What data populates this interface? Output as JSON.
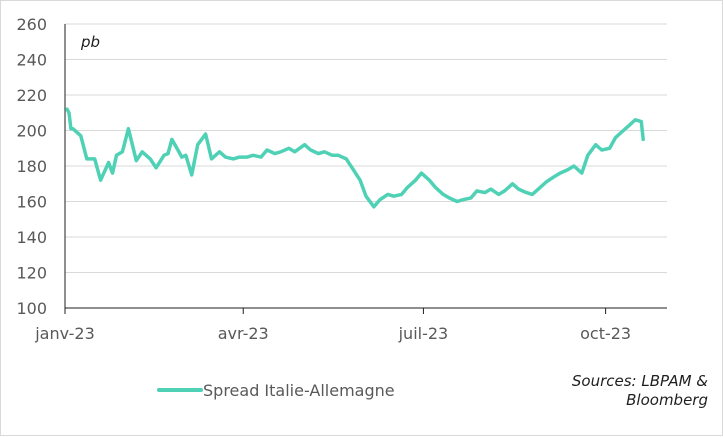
{
  "chart_data": {
    "type": "line",
    "unit_label": "pb",
    "x_ticks": [
      "janv-23",
      "avr-23",
      "juil-23",
      "oct-23"
    ],
    "x_range": [
      "2023-01-01",
      "2023-11-01"
    ],
    "ylim": [
      100,
      260
    ],
    "y_ticks": [
      100,
      120,
      140,
      160,
      180,
      200,
      220,
      240,
      260
    ],
    "grid": true,
    "legend_position": "bottom-left",
    "series": [
      {
        "name": "Spread Italie-Allemagne",
        "color": "#4fd1b5",
        "x": [
          "2023-01-02",
          "2023-01-03",
          "2023-01-04",
          "2023-01-05",
          "2023-01-09",
          "2023-01-12",
          "2023-01-16",
          "2023-01-19",
          "2023-01-23",
          "2023-01-25",
          "2023-01-27",
          "2023-01-30",
          "2023-02-02",
          "2023-02-06",
          "2023-02-09",
          "2023-02-13",
          "2023-02-16",
          "2023-02-20",
          "2023-02-22",
          "2023-02-24",
          "2023-02-27",
          "2023-03-01",
          "2023-03-03",
          "2023-03-06",
          "2023-03-09",
          "2023-03-13",
          "2023-03-16",
          "2023-03-20",
          "2023-03-23",
          "2023-03-27",
          "2023-03-30",
          "2023-04-03",
          "2023-04-06",
          "2023-04-10",
          "2023-04-13",
          "2023-04-17",
          "2023-04-20",
          "2023-04-24",
          "2023-04-27",
          "2023-05-02",
          "2023-05-05",
          "2023-05-09",
          "2023-05-12",
          "2023-05-16",
          "2023-05-19",
          "2023-05-23",
          "2023-05-26",
          "2023-05-30",
          "2023-06-02",
          "2023-06-06",
          "2023-06-09",
          "2023-06-13",
          "2023-06-16",
          "2023-06-20",
          "2023-06-23",
          "2023-06-27",
          "2023-06-30",
          "2023-07-04",
          "2023-07-07",
          "2023-07-11",
          "2023-07-14",
          "2023-07-18",
          "2023-07-21",
          "2023-07-25",
          "2023-07-28",
          "2023-08-01",
          "2023-08-04",
          "2023-08-08",
          "2023-08-11",
          "2023-08-15",
          "2023-08-18",
          "2023-08-22",
          "2023-08-25",
          "2023-08-29",
          "2023-09-01",
          "2023-09-05",
          "2023-09-08",
          "2023-09-12",
          "2023-09-15",
          "2023-09-19",
          "2023-09-22",
          "2023-09-26",
          "2023-09-29",
          "2023-10-03",
          "2023-10-06",
          "2023-10-10",
          "2023-10-13",
          "2023-10-16",
          "2023-10-19",
          "2023-10-20"
        ],
        "values": [
          212,
          210,
          201,
          201,
          197,
          184,
          184,
          172,
          182,
          176,
          186,
          188,
          201,
          183,
          188,
          184,
          179,
          186,
          187,
          195,
          189,
          185,
          186,
          175,
          192,
          198,
          184,
          188,
          185,
          184,
          185,
          185,
          186,
          185,
          189,
          187,
          188,
          190,
          188,
          192,
          189,
          187,
          188,
          186,
          186,
          184,
          179,
          172,
          163,
          157,
          161,
          164,
          163,
          164,
          168,
          172,
          176,
          172,
          168,
          164,
          162,
          160,
          161,
          162,
          166,
          165,
          167,
          164,
          166,
          170,
          167,
          165,
          164,
          168,
          171,
          174,
          176,
          178,
          180,
          176,
          186,
          192,
          189,
          190,
          196,
          200,
          203,
          206,
          205,
          195
        ]
      }
    ],
    "source": "Sources: LBPAM & Bloomberg"
  }
}
